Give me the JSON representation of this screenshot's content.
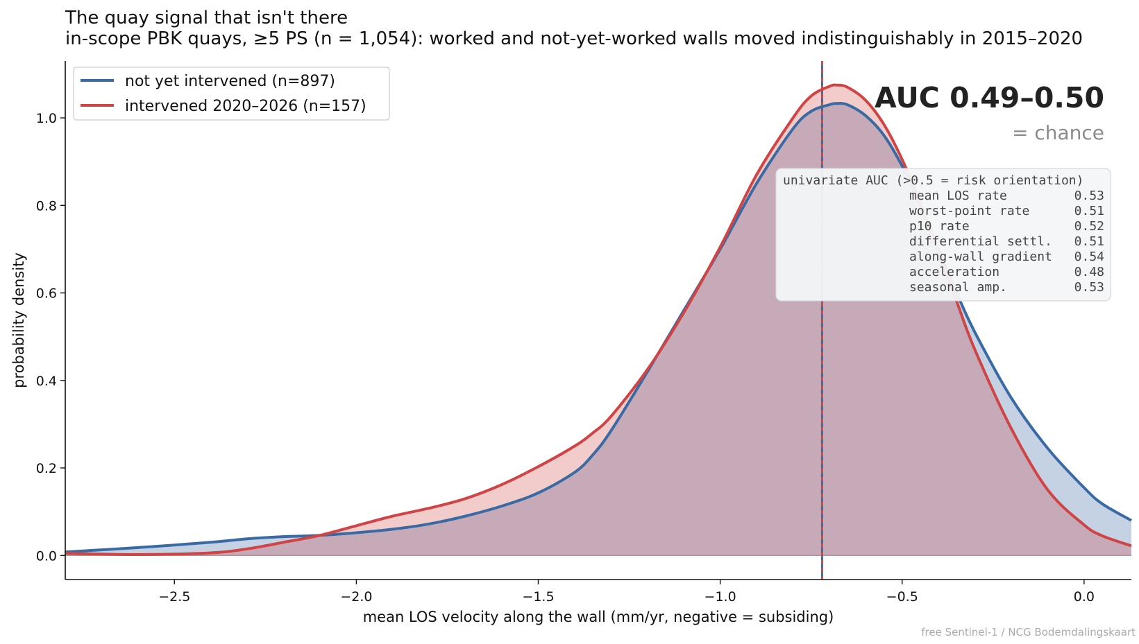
{
  "title": "The quay signal that isn't there",
  "subtitle": "in-scope PBK quays, ≥5 PS (n = 1,054): worked and not-yet-worked walls moved indistinguishably in 2015–2020",
  "credit": "free Sentinel-1 / NCG Bodemdalingskaart",
  "colors": {
    "blue": "#3a6aa3",
    "red": "#cf4444",
    "overlap": "#c4a6b3"
  },
  "chart_data": {
    "type": "area",
    "xlabel": "mean LOS velocity along the wall  (mm/yr,  negative = subsiding)",
    "ylabel": "probability density",
    "xlim": [
      -2.8,
      0.13
    ],
    "ylim": [
      -0.055,
      1.13
    ],
    "xticks": [
      -2.5,
      -2.0,
      -1.5,
      -1.0,
      -0.5,
      0.0
    ],
    "xtick_labels": [
      "−2.5",
      "−2.0",
      "−1.5",
      "−1.0",
      "−0.5",
      "0.0"
    ],
    "yticks": [
      0.0,
      0.2,
      0.4,
      0.6,
      0.8,
      1.0
    ],
    "ytick_labels": [
      "0.0",
      "0.2",
      "0.4",
      "0.6",
      "0.8",
      "1.0"
    ],
    "x": [
      -2.8,
      -2.6,
      -2.4,
      -2.3,
      -2.2,
      -2.1,
      -2.0,
      -1.9,
      -1.8,
      -1.7,
      -1.6,
      -1.5,
      -1.4,
      -1.35,
      -1.3,
      -1.2,
      -1.1,
      -1.0,
      -0.9,
      -0.8,
      -0.75,
      -0.7,
      -0.68,
      -0.65,
      -0.6,
      -0.55,
      -0.5,
      -0.45,
      -0.4,
      -0.35,
      -0.3,
      -0.2,
      -0.1,
      0.0,
      0.05,
      0.13
    ],
    "series": [
      {
        "name": "not yet intervened  (n=897)",
        "values": [
          0.008,
          0.018,
          0.03,
          0.038,
          0.043,
          0.046,
          0.052,
          0.06,
          0.072,
          0.09,
          0.113,
          0.143,
          0.19,
          0.23,
          0.285,
          0.42,
          0.56,
          0.7,
          0.85,
          0.975,
          1.015,
          1.03,
          1.033,
          1.03,
          1.005,
          0.96,
          0.89,
          0.8,
          0.7,
          0.6,
          0.51,
          0.36,
          0.245,
          0.155,
          0.118,
          0.08
        ]
      },
      {
        "name": "intervened 2020–2026  (n=157)",
        "values": [
          0.005,
          0.002,
          0.006,
          0.015,
          0.03,
          0.046,
          0.068,
          0.09,
          0.108,
          0.13,
          0.162,
          0.203,
          0.25,
          0.28,
          0.318,
          0.425,
          0.555,
          0.705,
          0.87,
          1.0,
          1.05,
          1.072,
          1.075,
          1.07,
          1.04,
          0.985,
          0.905,
          0.805,
          0.69,
          0.58,
          0.47,
          0.29,
          0.15,
          0.07,
          0.045,
          0.022
        ]
      }
    ],
    "legend": "top-left",
    "vline_x": -0.72,
    "annotation": {
      "headline": "AUC 0.49–0.50",
      "sub": "= chance"
    },
    "auc_table": {
      "header": "univariate AUC  (>0.5 = risk orientation)",
      "rows": [
        {
          "label": "mean LOS rate",
          "value": "0.53"
        },
        {
          "label": "worst-point rate",
          "value": "0.51"
        },
        {
          "label": "p10 rate",
          "value": "0.52"
        },
        {
          "label": "differential settl.",
          "value": "0.51"
        },
        {
          "label": "along-wall gradient",
          "value": "0.54"
        },
        {
          "label": "acceleration",
          "value": "0.48"
        },
        {
          "label": "seasonal amp.",
          "value": "0.53"
        }
      ]
    }
  }
}
